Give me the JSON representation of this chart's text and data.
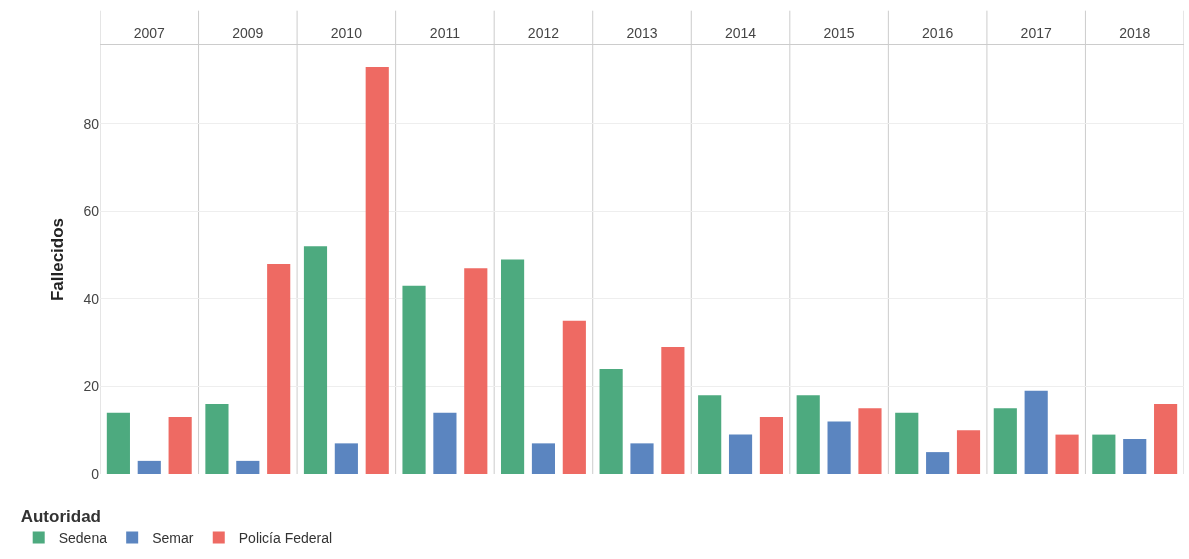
{
  "chart_data": {
    "type": "bar",
    "ylabel": "Fallecidos",
    "legend_title": "Autoridad",
    "categories": [
      "2007",
      "2009",
      "2010",
      "2011",
      "2012",
      "2013",
      "2014",
      "2015",
      "2016",
      "2017",
      "2018"
    ],
    "series": [
      {
        "name": "Sedena",
        "color": "#4daa7f",
        "values": [
          14,
          16,
          52,
          43,
          49,
          24,
          18,
          18,
          14,
          15,
          9
        ]
      },
      {
        "name": "Semar",
        "color": "#5b85c0",
        "values": [
          3,
          3,
          7,
          14,
          7,
          7,
          9,
          12,
          5,
          19,
          8
        ]
      },
      {
        "name": "Policía Federal",
        "color": "#ee6a63",
        "values": [
          13,
          48,
          93,
          47,
          35,
          29,
          13,
          15,
          10,
          9,
          16
        ]
      }
    ],
    "ylim": [
      0,
      98
    ],
    "yticks": [
      0,
      20,
      40,
      60,
      80
    ],
    "grid": "y",
    "legend": "bottom left"
  }
}
